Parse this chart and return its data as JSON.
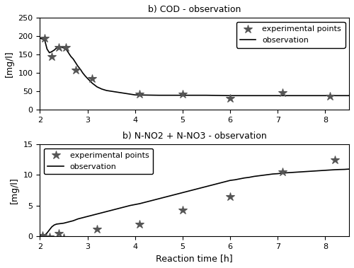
{
  "title1": "b) COD - observation",
  "title2": "b) N-NO2 + N-NO3 - observation",
  "xlabel": "Reaction time [h]",
  "ylabel": "[mg/l]",
  "cod_exp_x": [
    2.1,
    2.25,
    2.4,
    2.55,
    2.75,
    3.1,
    4.1,
    5.0,
    6.0,
    7.1,
    8.1
  ],
  "cod_exp_y": [
    195,
    145,
    170,
    170,
    108,
    85,
    42,
    42,
    30,
    47,
    37
  ],
  "cod_line_x": [
    2.0,
    2.1,
    2.15,
    2.2,
    2.25,
    2.3,
    2.35,
    2.4,
    2.45,
    2.5,
    2.55,
    2.6,
    2.65,
    2.7,
    2.75,
    2.8,
    2.85,
    2.9,
    2.95,
    3.0,
    3.1,
    3.2,
    3.3,
    3.4,
    3.5,
    3.6,
    3.7,
    3.8,
    3.9,
    4.0,
    4.5,
    5.0,
    5.5,
    6.0,
    6.5,
    7.0,
    7.5,
    8.0,
    8.5
  ],
  "cod_line_y": [
    195,
    190,
    165,
    155,
    158,
    162,
    168,
    170,
    170,
    168,
    165,
    155,
    145,
    138,
    128,
    118,
    110,
    100,
    92,
    85,
    72,
    62,
    56,
    52,
    50,
    48,
    46,
    44,
    42,
    40,
    39,
    39,
    39,
    38,
    38,
    38,
    38,
    38,
    38
  ],
  "nno_exp_x": [
    2.05,
    2.2,
    2.4,
    2.5,
    3.2,
    4.1,
    5.0,
    6.0,
    7.1,
    8.2
  ],
  "nno_exp_y": [
    0.1,
    -0.1,
    0.4,
    -0.2,
    1.1,
    1.9,
    4.3,
    6.5,
    10.5,
    12.5
  ],
  "nno_line_x": [
    2.0,
    2.05,
    2.1,
    2.15,
    2.2,
    2.25,
    2.3,
    2.35,
    2.4,
    2.45,
    2.5,
    2.6,
    2.7,
    2.8,
    2.9,
    3.0,
    3.1,
    3.2,
    3.3,
    3.4,
    3.5,
    3.6,
    3.7,
    3.8,
    3.9,
    4.0,
    4.1,
    4.2,
    4.3,
    4.4,
    4.5,
    4.6,
    4.7,
    4.8,
    4.9,
    5.0,
    5.1,
    5.2,
    5.3,
    5.4,
    5.5,
    5.6,
    5.7,
    5.8,
    5.9,
    6.0,
    6.1,
    6.2,
    6.3,
    6.4,
    6.5,
    6.6,
    6.7,
    6.8,
    6.9,
    7.0,
    7.1,
    7.2,
    7.3,
    7.4,
    7.5,
    7.6,
    7.7,
    7.8,
    7.9,
    8.0,
    8.1,
    8.2,
    8.3,
    8.4,
    8.5
  ],
  "nno_line_y": [
    0.0,
    0.05,
    0.1,
    0.5,
    1.0,
    1.5,
    1.8,
    1.95,
    2.0,
    2.05,
    2.1,
    2.3,
    2.5,
    2.8,
    3.0,
    3.2,
    3.4,
    3.6,
    3.8,
    4.0,
    4.2,
    4.4,
    4.6,
    4.8,
    5.0,
    5.15,
    5.3,
    5.5,
    5.7,
    5.9,
    6.1,
    6.3,
    6.5,
    6.7,
    6.9,
    7.1,
    7.3,
    7.5,
    7.7,
    7.9,
    8.1,
    8.3,
    8.5,
    8.7,
    8.9,
    9.1,
    9.2,
    9.35,
    9.5,
    9.6,
    9.75,
    9.85,
    9.95,
    10.05,
    10.15,
    10.2,
    10.3,
    10.35,
    10.4,
    10.45,
    10.5,
    10.55,
    10.6,
    10.65,
    10.7,
    10.75,
    10.8,
    10.85,
    10.88,
    10.9,
    10.95
  ],
  "cod_ylim": [
    0,
    250
  ],
  "cod_yticks": [
    0,
    50,
    100,
    150,
    200,
    250
  ],
  "nno_ylim": [
    0,
    15
  ],
  "nno_yticks": [
    0,
    5,
    10,
    15
  ],
  "xlim": [
    2,
    8.5
  ],
  "xticks": [
    2,
    3,
    4,
    5,
    6,
    7,
    8
  ],
  "line_color": "#000000",
  "marker_color": "#555555",
  "bg_color": "#ffffff",
  "fontsize": 9,
  "legend_fontsize": 8
}
